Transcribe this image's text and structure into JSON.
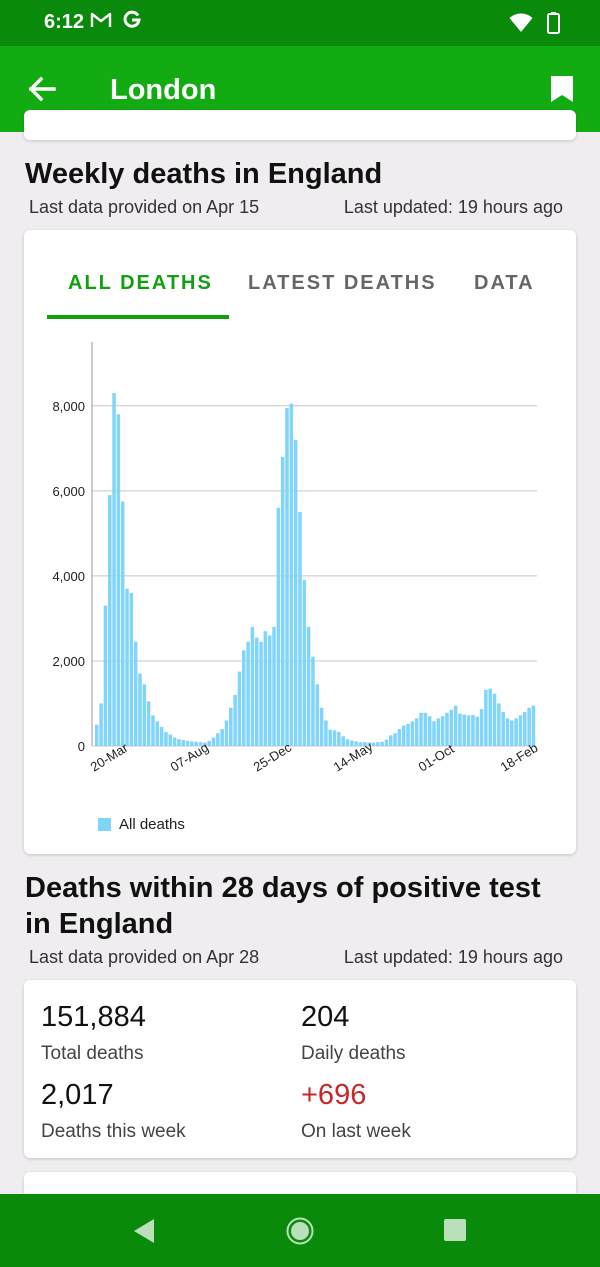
{
  "status": {
    "time": "6:12"
  },
  "appbar": {
    "title": "London"
  },
  "weekly": {
    "title": "Weekly deaths in England",
    "meta_left": "Last data provided on Apr 15",
    "meta_right": "Last updated: 19 hours ago",
    "tabs": [
      "ALL DEATHS",
      "LATEST DEATHS",
      "DATA"
    ],
    "legend": "All deaths"
  },
  "chart_data": {
    "type": "bar",
    "x_tick_labels": [
      "20-Mar",
      "07-Aug",
      "25-Dec",
      "14-May",
      "01-Oct",
      "18-Feb"
    ],
    "y_ticks": [
      0,
      2000,
      4000,
      6000,
      8000
    ],
    "y_tick_labels": [
      "0",
      "2,000",
      "4,000",
      "6,000",
      "8,000"
    ],
    "ylim": [
      0,
      9500
    ],
    "grid": true,
    "legend_position": "bottom-left",
    "series": [
      {
        "name": "All deaths",
        "color": "#81d4fa",
        "values": [
          500,
          1000,
          3300,
          5900,
          8300,
          7800,
          5750,
          3700,
          3600,
          2450,
          1700,
          1450,
          1050,
          720,
          580,
          450,
          330,
          270,
          200,
          160,
          140,
          120,
          110,
          100,
          90,
          80,
          120,
          200,
          300,
          400,
          600,
          900,
          1200,
          1750,
          2250,
          2450,
          2800,
          2550,
          2450,
          2700,
          2600,
          2800,
          5600,
          6800,
          7950,
          8050,
          7200,
          5500,
          3900,
          2800,
          2100,
          1450,
          900,
          600,
          380,
          370,
          330,
          230,
          160,
          130,
          110,
          90,
          90,
          80,
          80,
          90,
          100,
          150,
          250,
          300,
          400,
          480,
          520,
          580,
          650,
          780,
          780,
          700,
          580,
          650,
          700,
          780,
          850,
          950,
          760,
          740,
          720,
          730,
          690,
          870,
          1320,
          1350,
          1230,
          1000,
          800,
          650,
          600,
          650,
          720,
          800,
          900,
          950
        ]
      }
    ]
  },
  "positive": {
    "title_line1": "Deaths within 28 days of positive test",
    "title_line2": "in England",
    "meta_left": "Last data provided on Apr 28",
    "meta_right": "Last updated: 19 hours ago",
    "stats": [
      {
        "value": "151,884",
        "label": "Total deaths"
      },
      {
        "value": "204",
        "label": "Daily deaths"
      },
      {
        "value": "2,017",
        "label": "Deaths this week"
      },
      {
        "value": "+696",
        "label": "On last week"
      }
    ]
  }
}
